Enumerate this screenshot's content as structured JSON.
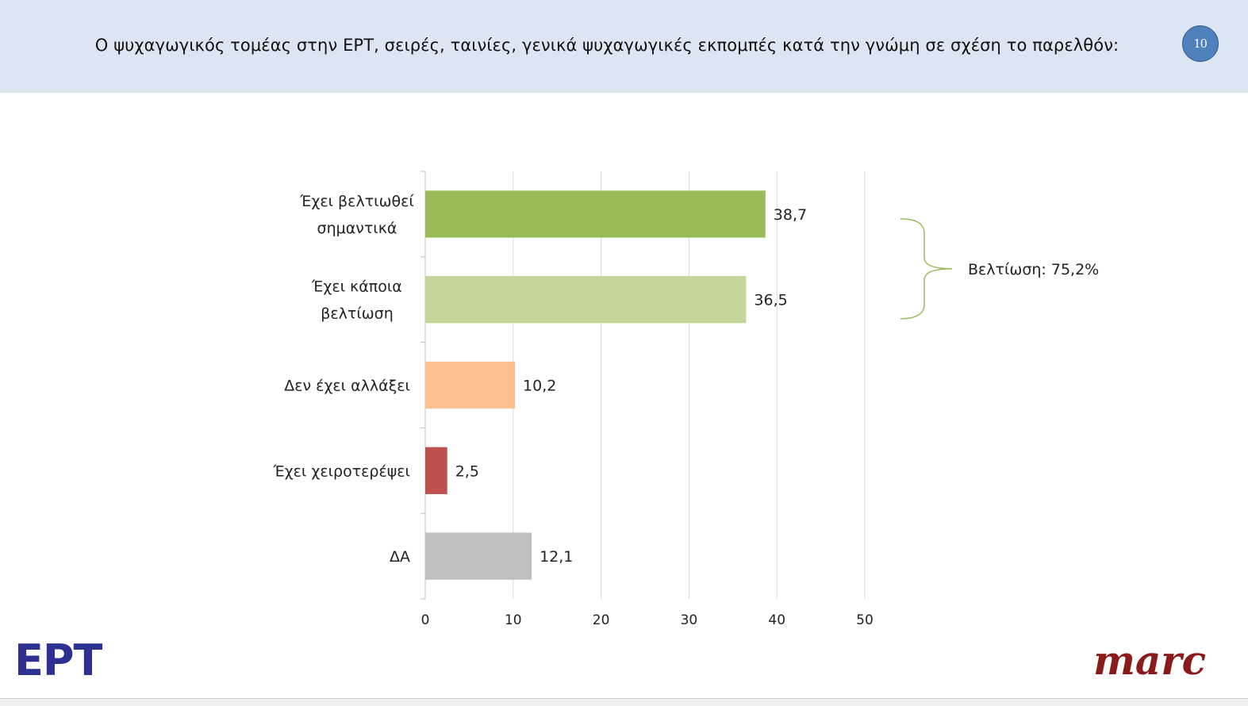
{
  "header": {
    "title": "Ο ψυχαγωγικός τομέας στην ΕΡΤ, σειρές, ταινίες, γενικά ψυχαγωγικές εκπομπές κατά την γνώμη σε σχέση το παρελθόν:",
    "page_number": "10"
  },
  "chart_data": {
    "type": "bar",
    "orientation": "horizontal",
    "categories": [
      [
        "Έχει βελτιωθεί",
        "σημαντικά"
      ],
      [
        "Έχει κάποια",
        "βελτίωση"
      ],
      [
        "Δεν έχει αλλάξει"
      ],
      [
        "Έχει χειροτερέψει"
      ],
      [
        "ΔΑ"
      ]
    ],
    "values": [
      38.7,
      36.5,
      10.2,
      2.5,
      12.1
    ],
    "value_labels": [
      "38,7",
      "36,5",
      "10,2",
      "2,5",
      "12,1"
    ],
    "colors": [
      "#9bbb59",
      "#c4d79b",
      "#fac090",
      "#c0504d",
      "#bfbfbf"
    ],
    "xlim": [
      0,
      50
    ],
    "xticks": [
      0,
      10,
      20,
      30,
      40,
      50
    ],
    "grid": true,
    "annotation": {
      "text": "Βελτίωση: 75,2%",
      "spans_categories": [
        0,
        1
      ],
      "color": "#9bbb59"
    }
  },
  "logos": {
    "left": "ΕΡΤ",
    "right": "marc"
  }
}
